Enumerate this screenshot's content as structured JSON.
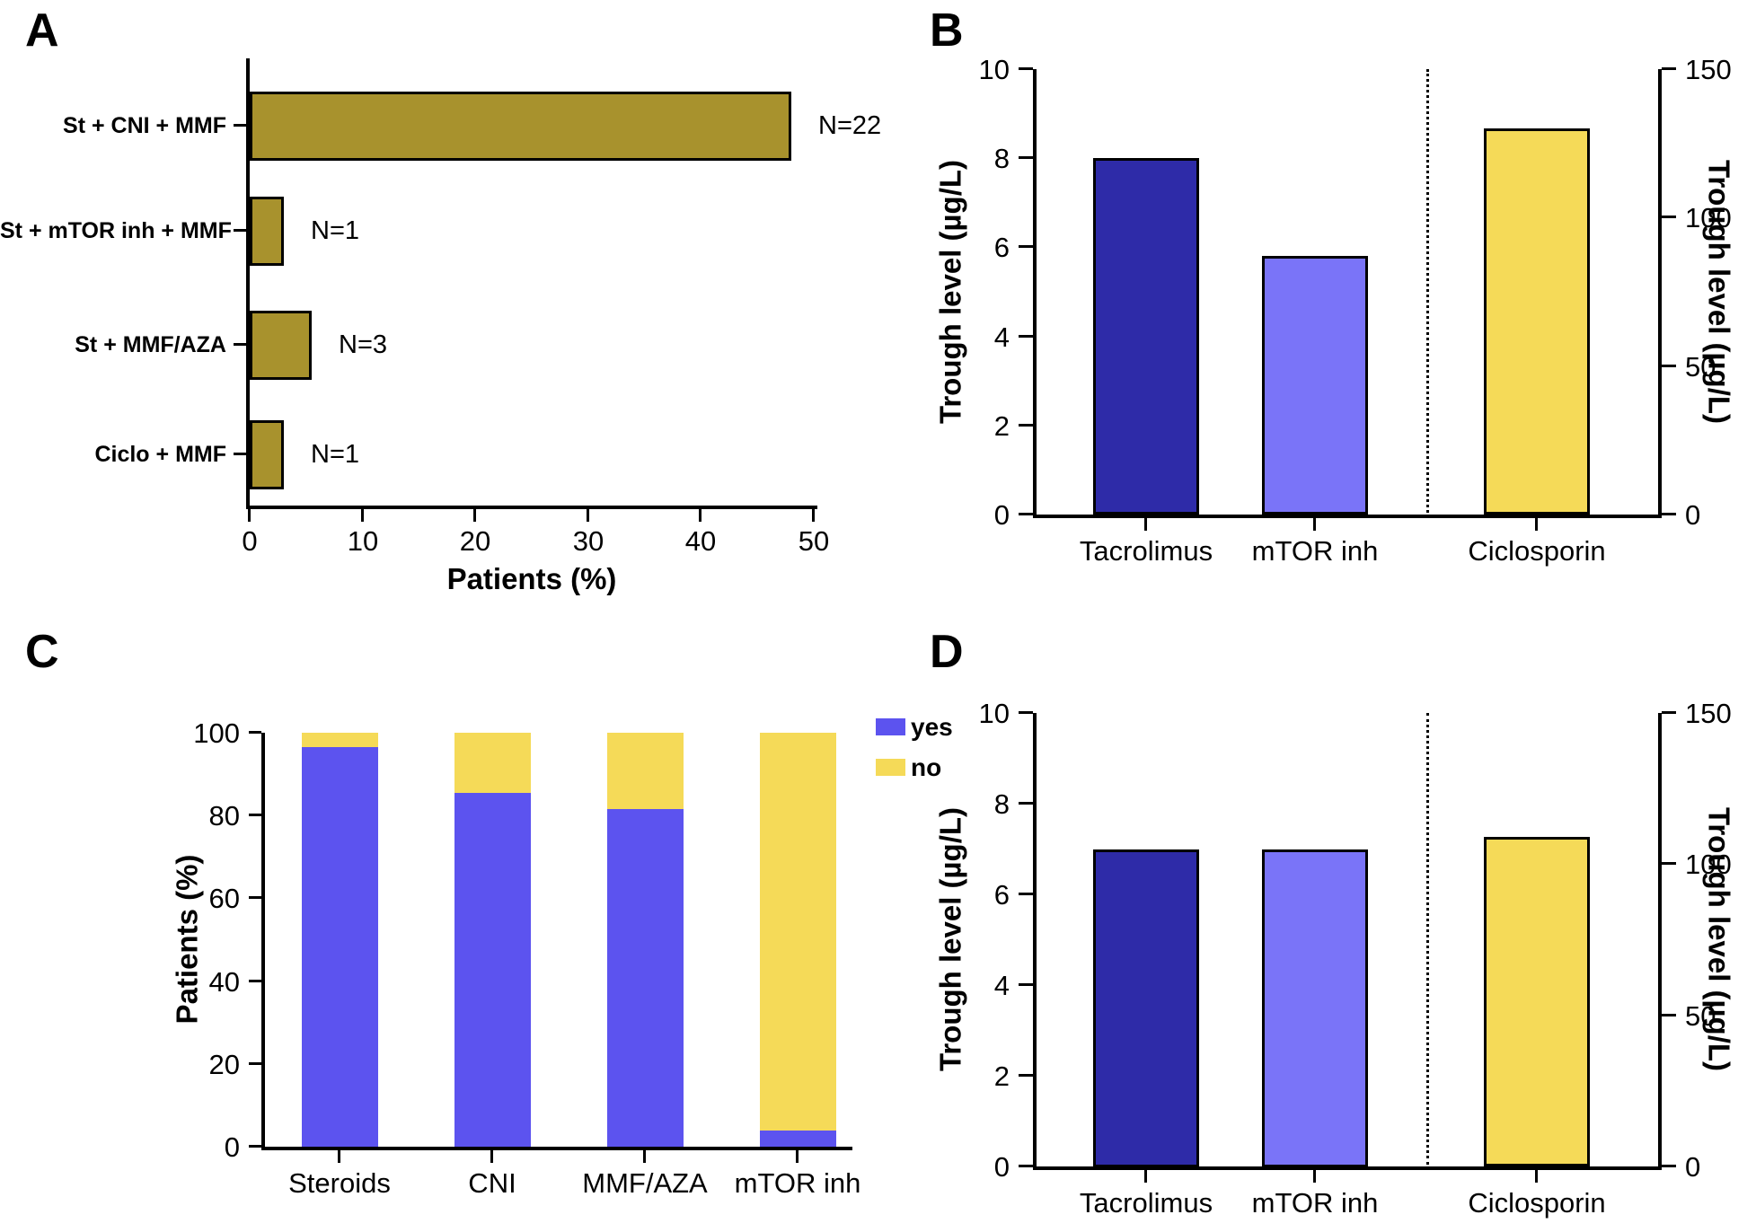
{
  "panel_labels": {
    "a": "A",
    "b": "B",
    "c": "C",
    "d": "D"
  },
  "chart_data": [
    {
      "id": "A",
      "type": "bar",
      "orientation": "horizontal",
      "xlabel": "Patients (%)",
      "xlim": [
        0,
        50
      ],
      "xticks": [
        0,
        10,
        20,
        30,
        40,
        50
      ],
      "bar_color": "#A8922D",
      "bar_border_color": "#000000",
      "categories": [
        "St + CNI + MMF",
        "St + mTOR inh + MMF",
        "St + MMF/AZA",
        "Ciclo + MMF"
      ],
      "values": [
        48,
        3,
        5.5,
        3
      ],
      "bar_labels": [
        "N=22",
        "N=1",
        "N=3",
        "N=1"
      ]
    },
    {
      "id": "B",
      "type": "bar",
      "orientation": "vertical",
      "dual_axis": true,
      "ylabel_left": "Trough level (µg/L)",
      "ylabel_right": "Trough level (µg/L)",
      "ylim_left": [
        0,
        10
      ],
      "yticks_left": [
        0,
        2,
        4,
        6,
        8,
        10
      ],
      "ylim_right": [
        0,
        150
      ],
      "yticks_right": [
        0,
        50,
        100,
        150
      ],
      "categories": [
        "Tacrolimus",
        "mTOR inh",
        "Ciclosporin"
      ],
      "bars": [
        {
          "category": "Tacrolimus",
          "value": 8.0,
          "axis": "left",
          "color": "#2E2BA8"
        },
        {
          "category": "mTOR inh",
          "value": 5.8,
          "axis": "left",
          "color": "#7A74F8"
        },
        {
          "category": "Ciclosporin",
          "value": 130,
          "axis": "right",
          "color": "#F5DA58"
        }
      ],
      "separator": {
        "style": "dotted",
        "between": [
          "mTOR inh",
          "Ciclosporin"
        ]
      }
    },
    {
      "id": "C",
      "type": "stacked-bar",
      "ylabel": "Patients (%)",
      "ylim": [
        0,
        100
      ],
      "yticks": [
        0,
        20,
        40,
        60,
        80,
        100
      ],
      "categories": [
        "Steroids",
        "CNI",
        "MMF/AZA",
        "mTOR inh"
      ],
      "series": [
        {
          "name": "yes",
          "color": "#5C53EF",
          "values": [
            96.5,
            85.5,
            81.5,
            4
          ]
        },
        {
          "name": "no",
          "color": "#F5DA58",
          "values": [
            3.5,
            14.5,
            18.5,
            96
          ]
        }
      ],
      "legend": [
        {
          "label": "yes",
          "color": "#5C53EF"
        },
        {
          "label": "no",
          "color": "#F5DA58"
        }
      ],
      "legend_position": "upper-right"
    },
    {
      "id": "D",
      "type": "bar",
      "orientation": "vertical",
      "dual_axis": true,
      "ylabel_left": "Trough level (µg/L)",
      "ylabel_right": "Trough level (µg/L)",
      "ylim_left": [
        0,
        10
      ],
      "yticks_left": [
        0,
        2,
        4,
        6,
        8,
        10
      ],
      "ylim_right": [
        0,
        150
      ],
      "yticks_right": [
        0,
        50,
        100,
        150
      ],
      "categories": [
        "Tacrolimus",
        "mTOR inh",
        "Ciclosporin"
      ],
      "bars": [
        {
          "category": "Tacrolimus",
          "value": 7.0,
          "axis": "left",
          "color": "#2E2BA8"
        },
        {
          "category": "mTOR inh",
          "value": 7.0,
          "axis": "left",
          "color": "#7A74F8"
        },
        {
          "category": "Ciclosporin",
          "value": 109,
          "axis": "right",
          "color": "#F5DA58"
        }
      ],
      "separator": {
        "style": "dotted",
        "between": [
          "mTOR inh",
          "Ciclosporin"
        ]
      }
    }
  ]
}
